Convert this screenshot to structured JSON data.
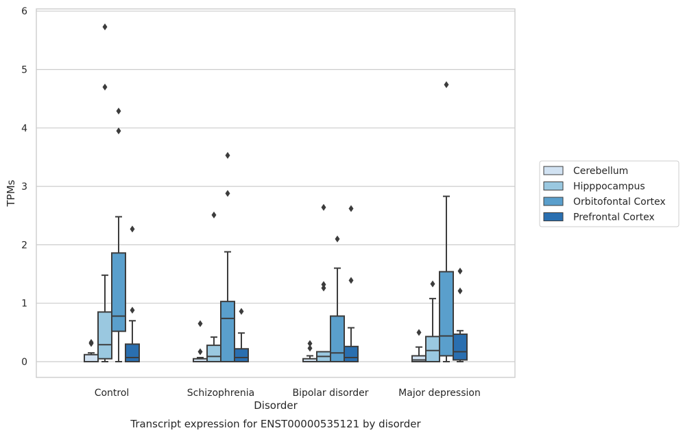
{
  "chart_data": {
    "type": "box",
    "title": "Transcript expression for ENST00000535121 by disorder",
    "xlabel": "Disorder",
    "ylabel": "TPMs",
    "ylim": [
      -0.27,
      6.05
    ],
    "yticks": [
      "0",
      "1",
      "2",
      "3",
      "4",
      "5",
      "6"
    ],
    "grid": true,
    "legend_position": "right",
    "categories": [
      "Control",
      "Schizophrenia",
      "Bipolar disorder",
      "Major depression"
    ],
    "series": [
      {
        "name": "Cerebellum",
        "color": "#d1e2f2",
        "boxes": [
          {
            "q1": 0.0,
            "median": 0.0,
            "q3": 0.12,
            "whisker_low": 0.0,
            "whisker_high": 0.15,
            "outliers": [
              0.31,
              0.33
            ]
          },
          {
            "q1": 0.0,
            "median": 0.0,
            "q3": 0.05,
            "whisker_low": 0.0,
            "whisker_high": 0.07,
            "outliers": [
              0.17,
              0.65
            ]
          },
          {
            "q1": 0.0,
            "median": 0.0,
            "q3": 0.05,
            "whisker_low": 0.0,
            "whisker_high": 0.1,
            "outliers": [
              0.23,
              0.31
            ]
          },
          {
            "q1": 0.0,
            "median": 0.03,
            "q3": 0.1,
            "whisker_low": 0.0,
            "whisker_high": 0.25,
            "outliers": [
              0.5
            ]
          }
        ]
      },
      {
        "name": "Hipppocampus",
        "color": "#9ac8e0",
        "boxes": [
          {
            "q1": 0.05,
            "median": 0.29,
            "q3": 0.85,
            "whisker_low": 0.0,
            "whisker_high": 1.48,
            "outliers": [
              4.7,
              5.73
            ]
          },
          {
            "q1": 0.0,
            "median": 0.09,
            "q3": 0.28,
            "whisker_low": 0.0,
            "whisker_high": 0.42,
            "outliers": [
              2.51
            ]
          },
          {
            "q1": 0.0,
            "median": 0.09,
            "q3": 0.17,
            "whisker_low": 0.0,
            "whisker_high": 0.17,
            "outliers": [
              1.26,
              1.32,
              2.64
            ]
          },
          {
            "q1": 0.0,
            "median": 0.19,
            "q3": 0.43,
            "whisker_low": 0.0,
            "whisker_high": 1.08,
            "outliers": [
              1.33
            ]
          }
        ]
      },
      {
        "name": "Orbitofontal Cortex",
        "color": "#5a9fcc",
        "boxes": [
          {
            "q1": 0.52,
            "median": 0.78,
            "q3": 1.86,
            "whisker_low": 0.0,
            "whisker_high": 2.48,
            "outliers": [
              3.95,
              4.29
            ]
          },
          {
            "q1": 0.0,
            "median": 0.74,
            "q3": 1.03,
            "whisker_low": 0.0,
            "whisker_high": 1.88,
            "outliers": [
              2.88,
              3.53
            ]
          },
          {
            "q1": 0.0,
            "median": 0.15,
            "q3": 0.78,
            "whisker_low": 0.0,
            "whisker_high": 1.6,
            "outliers": [
              2.1
            ]
          },
          {
            "q1": 0.1,
            "median": 0.44,
            "q3": 1.54,
            "whisker_low": 0.0,
            "whisker_high": 2.83,
            "outliers": [
              4.74
            ]
          }
        ]
      },
      {
        "name": "Prefrontal Cortex",
        "color": "#2a6fb0",
        "boxes": [
          {
            "q1": 0.0,
            "median": 0.07,
            "q3": 0.3,
            "whisker_low": 0.0,
            "whisker_high": 0.7,
            "outliers": [
              0.88,
              2.27
            ]
          },
          {
            "q1": 0.0,
            "median": 0.07,
            "q3": 0.22,
            "whisker_low": 0.0,
            "whisker_high": 0.49,
            "outliers": [
              0.86
            ]
          },
          {
            "q1": 0.0,
            "median": 0.07,
            "q3": 0.26,
            "whisker_low": 0.0,
            "whisker_high": 0.58,
            "outliers": [
              1.39,
              2.62
            ]
          },
          {
            "q1": 0.03,
            "median": 0.17,
            "q3": 0.47,
            "whisker_low": 0.0,
            "whisker_high": 0.53,
            "outliers": [
              1.21,
              1.55
            ]
          }
        ]
      }
    ]
  }
}
